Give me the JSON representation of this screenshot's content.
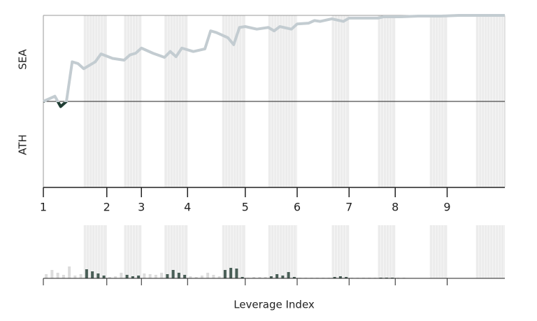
{
  "chart_data": [
    {
      "type": "line",
      "y_labels": [
        "SEA",
        "ATH"
      ],
      "x": [
        0,
        2,
        3,
        4,
        5,
        6,
        7,
        9,
        10,
        12,
        14,
        15,
        16,
        17,
        19,
        21,
        22,
        23,
        24,
        26,
        28,
        29,
        30,
        32,
        33,
        34,
        35,
        37,
        39,
        40,
        41,
        43,
        44,
        46,
        47,
        48,
        50,
        52,
        53,
        56,
        58,
        59,
        62,
        65,
        69,
        72,
        76,
        80
      ],
      "values": [
        50,
        53,
        47,
        50,
        73,
        72,
        69,
        73,
        77.6,
        75,
        74,
        77,
        78,
        81,
        78,
        75.6,
        79,
        76,
        81,
        79,
        80.5,
        91,
        90,
        87,
        83,
        93,
        93.5,
        92,
        93,
        91,
        93.5,
        92,
        95,
        95.5,
        97,
        96.5,
        98,
        96.5,
        98.4,
        98.4,
        98.4,
        99.2,
        99.2,
        99.6,
        99.6,
        100,
        100,
        100
      ],
      "color_above": "#c3ccd1",
      "color_below": "#1f3d33",
      "midline": 50,
      "xlim": [
        0,
        80
      ],
      "ylim": [
        0,
        100
      ],
      "xticks": [
        {
          "value": 0,
          "label": "1"
        },
        {
          "value": 11,
          "label": "2"
        },
        {
          "value": 17,
          "label": "3"
        },
        {
          "value": 25,
          "label": "4"
        },
        {
          "value": 35,
          "label": "5"
        },
        {
          "value": 44,
          "label": "6"
        },
        {
          "value": 53,
          "label": "7"
        },
        {
          "value": 61,
          "label": "8"
        },
        {
          "value": 70,
          "label": "9"
        }
      ],
      "shaded_spans": [
        [
          7,
          11
        ],
        [
          14,
          17
        ],
        [
          21,
          25
        ],
        [
          31,
          35
        ],
        [
          39,
          44
        ],
        [
          50,
          53
        ],
        [
          58,
          61
        ],
        [
          67,
          70
        ],
        [
          75,
          80
        ]
      ]
    },
    {
      "type": "bar",
      "x_label": "Leverage Index",
      "values": [
        0.6,
        1.2,
        0.8,
        0.5,
        1.7,
        0.4,
        0.6,
        1.3,
        1.0,
        0.7,
        0.4,
        0.2,
        0.3,
        0.8,
        0.5,
        0.3,
        0.4,
        0.7,
        0.6,
        0.5,
        0.8,
        0.6,
        1.2,
        0.8,
        0.5,
        0.3,
        0.2,
        0.4,
        0.8,
        0.5,
        0.3,
        1.2,
        1.5,
        1.4,
        0.2,
        0.1,
        0.2,
        0.2,
        0.2,
        0.3,
        0.6,
        0.4,
        0.9,
        0.2,
        0.1,
        0.1,
        0.1,
        0.1,
        0.1,
        0.1,
        0.2,
        0.3,
        0.2,
        0.1,
        0.1,
        0.1,
        0.1,
        0.1,
        0.1,
        0.1,
        0.1,
        0.1,
        0.1,
        0.05,
        0.05,
        0.05,
        0.05,
        0.05,
        0.05,
        0.05,
        0.05,
        0.05,
        0.05,
        0.05,
        0.05,
        0.05,
        0.05,
        0.05,
        0.05,
        0.05
      ],
      "color_shaded": "#4a5f57",
      "color_plain": "#dcdcdc",
      "xlim": [
        0,
        80
      ],
      "ylim": [
        0,
        3
      ],
      "xticks": [
        0,
        11,
        17,
        25,
        35,
        44,
        53,
        61,
        70
      ]
    }
  ]
}
